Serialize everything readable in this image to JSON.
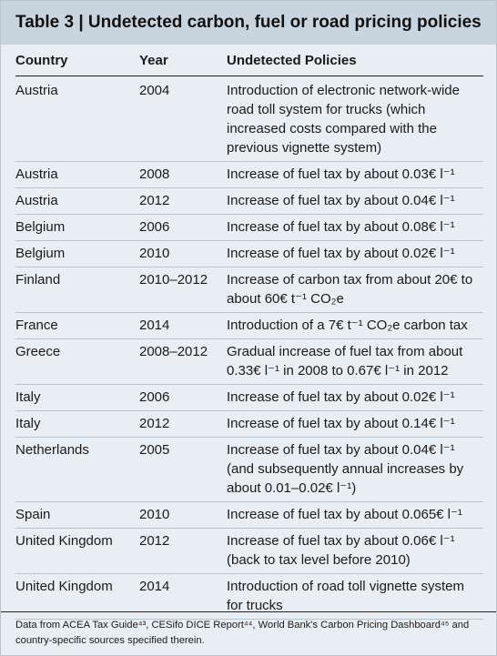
{
  "title": "Table 3 | Undetected carbon, fuel or road pricing policies",
  "table": {
    "columns": [
      "Country",
      "Year",
      "Undetected Policies"
    ],
    "rows": [
      [
        "Austria",
        "2004",
        "Introduction of electronic network-wide road toll system for trucks (which increased costs compared with the previous vignette system)"
      ],
      [
        "Austria",
        "2008",
        "Increase of fuel tax by about 0.03€ l⁻¹"
      ],
      [
        "Austria",
        "2012",
        "Increase of fuel tax by about 0.04€ l⁻¹"
      ],
      [
        "Belgium",
        "2006",
        "Increase of fuel tax by about 0.08€ l⁻¹"
      ],
      [
        "Belgium",
        "2010",
        "Increase of fuel tax by about 0.02€ l⁻¹"
      ],
      [
        "Finland",
        "2010–2012",
        "Increase of carbon tax from about 20€ to about 60€ t⁻¹ CO₂e"
      ],
      [
        "France",
        "2014",
        "Introduction of a 7€ t⁻¹ CO₂e carbon tax"
      ],
      [
        "Greece",
        "2008–2012",
        "Gradual increase of fuel tax from about 0.33€ l⁻¹ in 2008 to 0.67€ l⁻¹ in 2012"
      ],
      [
        "Italy",
        "2006",
        "Increase of fuel tax by about 0.02€ l⁻¹"
      ],
      [
        "Italy",
        "2012",
        "Increase of fuel tax by about 0.14€ l⁻¹"
      ],
      [
        "Netherlands",
        "2005",
        "Increase of fuel tax by about 0.04€ l⁻¹ (and subsequently annual increases by about 0.01–0.02€ l⁻¹)"
      ],
      [
        "Spain",
        "2010",
        "Increase of fuel tax by about 0.065€ l⁻¹"
      ],
      [
        "United Kingdom",
        "2012",
        "Increase of fuel tax by about 0.06€ l⁻¹ (back to tax level before 2010)"
      ],
      [
        "United Kingdom",
        "2014",
        "Introduction of road toll vignette system for trucks"
      ]
    ]
  },
  "footnote": "Data from ACEA Tax Guide⁴³, CESifo DICE Report⁴⁴, World Bank's Carbon Pricing Dashboard⁴⁵ and country-specific sources specified therein."
}
